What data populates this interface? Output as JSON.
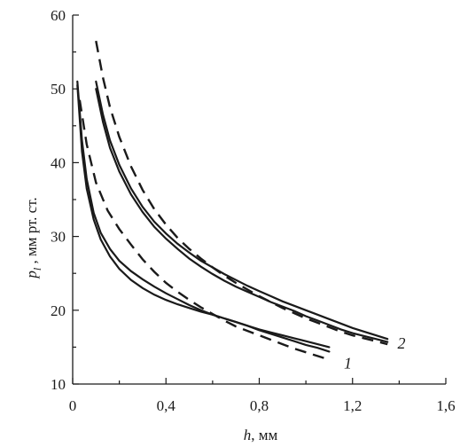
{
  "chart_data": {
    "type": "line",
    "xlabel_var": "h",
    "xlabel_unit": ", мм",
    "ylabel_var": "p",
    "ylabel_sub": "l",
    "ylabel_unit": " , мм рт. ст.",
    "xlim": [
      0,
      1.6
    ],
    "ylim": [
      10,
      60
    ],
    "x_ticks": [
      0,
      0.4,
      0.8,
      1.2,
      1.6
    ],
    "x_tick_labels": [
      "0",
      "0,4",
      "0,8",
      "1,2",
      "1,6"
    ],
    "y_ticks": [
      10,
      20,
      30,
      40,
      50,
      60
    ],
    "y_tick_labels": [
      "10",
      "20",
      "30",
      "40",
      "50",
      "60"
    ],
    "grid": false,
    "curve_labels": [
      {
        "text": "1",
        "x": 1.18,
        "y": 12.8
      },
      {
        "text": "2",
        "x": 1.41,
        "y": 15.5
      }
    ],
    "series": [
      {
        "style": "solid",
        "x": [
          0.02,
          0.04,
          0.06,
          0.09,
          0.12,
          0.16,
          0.2,
          0.25,
          0.3,
          0.35,
          0.4,
          0.45,
          0.5,
          0.55,
          0.6,
          0.65,
          0.7,
          0.75,
          0.8,
          0.85,
          0.9,
          0.95,
          1.0,
          1.05,
          1.1
        ],
        "y": [
          51.0,
          43.0,
          37.8,
          33.2,
          30.5,
          28.3,
          26.7,
          25.3,
          24.2,
          23.2,
          22.3,
          21.5,
          20.7,
          20.0,
          19.4,
          18.9,
          18.4,
          17.9,
          17.4,
          17.0,
          16.6,
          16.2,
          15.8,
          15.4,
          15.0
        ]
      },
      {
        "style": "solid",
        "x": [
          0.02,
          0.04,
          0.06,
          0.09,
          0.12,
          0.16,
          0.2,
          0.25,
          0.3,
          0.35,
          0.4,
          0.45,
          0.5,
          0.55,
          0.6,
          0.65,
          0.7,
          0.75,
          0.8,
          0.85,
          0.9,
          0.95,
          1.0,
          1.05,
          1.1
        ],
        "y": [
          50.5,
          41.5,
          36.5,
          32.3,
          29.6,
          27.3,
          25.6,
          24.1,
          23.0,
          22.1,
          21.4,
          20.8,
          20.3,
          19.8,
          19.4,
          18.9,
          18.4,
          17.9,
          17.3,
          16.8,
          16.3,
          15.8,
          15.3,
          14.9,
          14.4
        ]
      },
      {
        "style": "dashed",
        "x": [
          0.03,
          0.06,
          0.1,
          0.15,
          0.2,
          0.25,
          0.3,
          0.35,
          0.4,
          0.45,
          0.5,
          0.55,
          0.6,
          0.65,
          0.7,
          0.75,
          0.8,
          0.85,
          0.9,
          0.95,
          1.0,
          1.05,
          1.1
        ],
        "y": [
          48.5,
          42.5,
          37.3,
          33.5,
          31.0,
          28.9,
          26.9,
          25.2,
          23.7,
          22.5,
          21.4,
          20.4,
          19.5,
          18.6,
          17.8,
          17.2,
          16.6,
          16.0,
          15.4,
          14.8,
          14.3,
          13.8,
          13.3
        ]
      },
      {
        "style": "solid",
        "x": [
          0.1,
          0.13,
          0.16,
          0.2,
          0.25,
          0.3,
          0.35,
          0.4,
          0.45,
          0.5,
          0.55,
          0.6,
          0.65,
          0.7,
          0.75,
          0.8,
          0.85,
          0.9,
          0.95,
          1.0,
          1.05,
          1.1,
          1.15,
          1.2,
          1.25,
          1.3,
          1.35
        ],
        "y": [
          51.0,
          46.5,
          43.0,
          39.7,
          36.5,
          34.0,
          32.0,
          30.4,
          29.0,
          27.8,
          26.7,
          25.8,
          24.9,
          24.1,
          23.3,
          22.6,
          21.9,
          21.2,
          20.6,
          20.0,
          19.4,
          18.8,
          18.2,
          17.6,
          17.1,
          16.6,
          16.1
        ]
      },
      {
        "style": "solid",
        "x": [
          0.1,
          0.13,
          0.16,
          0.2,
          0.25,
          0.3,
          0.35,
          0.4,
          0.45,
          0.5,
          0.55,
          0.6,
          0.65,
          0.7,
          0.75,
          0.8,
          0.85,
          0.9,
          0.95,
          1.0,
          1.05,
          1.1,
          1.15,
          1.2,
          1.25,
          1.3,
          1.35
        ],
        "y": [
          50.0,
          45.5,
          42.0,
          38.8,
          35.7,
          33.3,
          31.3,
          29.7,
          28.3,
          27.0,
          25.9,
          24.9,
          24.0,
          23.2,
          22.5,
          21.8,
          21.1,
          20.5,
          19.9,
          19.2,
          18.6,
          18.0,
          17.4,
          16.9,
          16.5,
          16.1,
          15.7
        ]
      },
      {
        "style": "dashed",
        "x": [
          0.1,
          0.13,
          0.16,
          0.2,
          0.25,
          0.3,
          0.35,
          0.4,
          0.45,
          0.5,
          0.55,
          0.6,
          0.65,
          0.7,
          0.75,
          0.8,
          0.85,
          0.9,
          0.95,
          1.0,
          1.05,
          1.1,
          1.15,
          1.2,
          1.25,
          1.3,
          1.35
        ],
        "y": [
          56.5,
          51.5,
          47.5,
          43.5,
          39.5,
          36.3,
          33.7,
          31.6,
          29.8,
          28.3,
          27.0,
          25.8,
          24.7,
          23.7,
          22.8,
          21.9,
          21.1,
          20.3,
          19.6,
          18.9,
          18.3,
          17.7,
          17.1,
          16.6,
          16.2,
          15.8,
          15.4
        ]
      }
    ]
  }
}
